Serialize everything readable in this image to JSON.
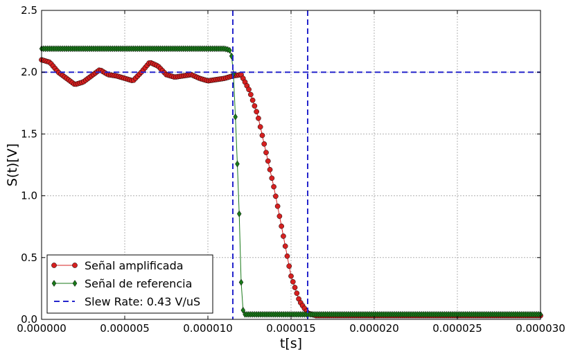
{
  "chart_data": {
    "type": "line",
    "xlabel": "t[s]",
    "ylabel": "S(t)[V]",
    "xlim": [
      0,
      3e-05
    ],
    "ylim": [
      0,
      2.5
    ],
    "grid": true,
    "legend_position": "bottom-left",
    "x_ticks": [
      "0.000000",
      "0.000005",
      "0.000010",
      "0.000015",
      "0.000020",
      "0.000025",
      "0.000030"
    ],
    "y_ticks": [
      "0.0",
      "0.5",
      "1.0",
      "1.5",
      "2.0",
      "2.5"
    ],
    "series": [
      {
        "name": "Señal amplificada",
        "color": "#d62020",
        "marker": "circle",
        "x": [
          0,
          5e-07,
          1e-06,
          1.5e-06,
          2e-06,
          2.5e-06,
          3e-06,
          3.5e-06,
          4e-06,
          4.5e-06,
          5e-06,
          5.5e-06,
          6e-06,
          6.5e-06,
          7e-06,
          7.5e-06,
          8e-06,
          8.5e-06,
          9e-06,
          9.5e-06,
          1e-05,
          1.05e-05,
          1.1e-05,
          1.15e-05,
          1.2e-05,
          1.25e-05,
          1.3e-05,
          1.35e-05,
          1.4e-05,
          1.45e-05,
          1.5e-05,
          1.55e-05,
          1.6e-05,
          1.65e-05,
          1.7e-05,
          1.8e-05,
          1.9e-05,
          2e-05,
          2.1e-05,
          2.2e-05,
          2.3e-05,
          2.4e-05,
          2.5e-05,
          2.6e-05,
          2.7e-05,
          2.8e-05,
          2.9e-05,
          3e-05
        ],
        "y": [
          2.1,
          2.08,
          2.0,
          1.95,
          1.9,
          1.92,
          1.97,
          2.02,
          1.98,
          1.97,
          1.95,
          1.93,
          2.0,
          2.08,
          2.05,
          1.98,
          1.96,
          1.97,
          1.98,
          1.95,
          1.93,
          1.94,
          1.95,
          1.97,
          1.98,
          1.85,
          1.65,
          1.35,
          1.05,
          0.7,
          0.35,
          0.15,
          0.05,
          0.03,
          0.03,
          0.03,
          0.03,
          0.03,
          0.03,
          0.03,
          0.03,
          0.03,
          0.03,
          0.03,
          0.03,
          0.03,
          0.03,
          0.03
        ]
      },
      {
        "name": "Señal de referencia",
        "color": "#1a7a1a",
        "marker": "diamond",
        "x": [
          0,
          1e-06,
          2e-06,
          3e-06,
          4e-06,
          5e-06,
          6e-06,
          7e-06,
          8e-06,
          9e-06,
          1e-05,
          1.1e-05,
          1.13e-05,
          1.15e-05,
          1.17e-05,
          1.19e-05,
          1.2e-05,
          1.21e-05,
          1.22e-05,
          1.3e-05,
          1.4e-05,
          1.5e-05,
          1.6e-05,
          1.7e-05,
          1.8e-05,
          1.9e-05,
          2e-05,
          2.1e-05,
          2.2e-05,
          2.3e-05,
          2.4e-05,
          2.5e-05,
          2.6e-05,
          2.7e-05,
          2.8e-05,
          2.9e-05,
          3e-05
        ],
        "y": [
          2.19,
          2.19,
          2.19,
          2.19,
          2.19,
          2.19,
          2.19,
          2.19,
          2.19,
          2.19,
          2.19,
          2.19,
          2.18,
          2.1,
          1.5,
          0.8,
          0.3,
          0.08,
          0.04,
          0.04,
          0.04,
          0.04,
          0.04,
          0.04,
          0.04,
          0.04,
          0.04,
          0.04,
          0.04,
          0.04,
          0.04,
          0.04,
          0.04,
          0.04,
          0.04,
          0.04,
          0.04
        ]
      }
    ],
    "reference_lines": {
      "name": "Slew Rate: 0.43 V/uS",
      "color": "#2424cc",
      "vertical": [
        1.15e-05,
        1.6e-05
      ],
      "horizontal": [
        2.0
      ]
    }
  }
}
